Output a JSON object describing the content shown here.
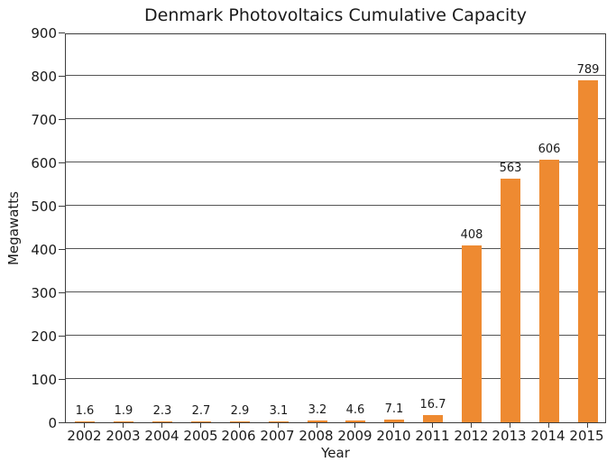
{
  "chart_data": {
    "type": "bar",
    "title": "Denmark Photovoltaics Cumulative Capacity",
    "xlabel": "Year",
    "ylabel": "Megawatts",
    "categories": [
      "2002",
      "2003",
      "2004",
      "2005",
      "2006",
      "2007",
      "2008",
      "2009",
      "2010",
      "2011",
      "2012",
      "2013",
      "2014",
      "2015"
    ],
    "values": [
      1.6,
      1.9,
      2.3,
      2.7,
      2.9,
      3.1,
      3.2,
      4.6,
      7.1,
      16.7,
      408,
      563,
      606,
      789
    ],
    "value_labels": [
      "1.6",
      "1.9",
      "2.3",
      "2.7",
      "2.9",
      "3.1",
      "3.2",
      "4.6",
      "7.1",
      "16.7",
      "408",
      "563",
      "606",
      "789"
    ],
    "ylim": [
      0,
      900
    ],
    "yticks": [
      0,
      100,
      200,
      300,
      400,
      500,
      600,
      700,
      800,
      900
    ],
    "grid": "horizontal-only",
    "legend": "none",
    "colors": {
      "bar": "#EE8A31",
      "grid_line": "#555555",
      "axis_line": "#3d3d3d",
      "text": "#1a1a1a",
      "background": "#ffffff"
    }
  }
}
